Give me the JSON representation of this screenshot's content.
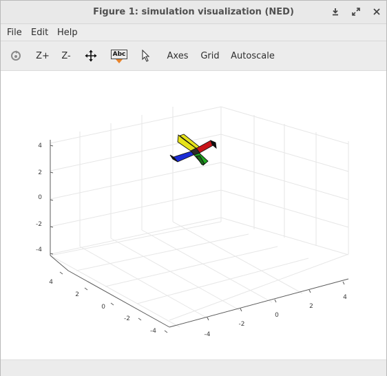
{
  "window": {
    "title": "Figure 1: simulation visualization (NED)"
  },
  "menu": {
    "items": [
      "File",
      "Edit",
      "Help"
    ]
  },
  "toolbar": {
    "zoom_in": "Z+",
    "zoom_out": "Z-",
    "text_tool": "Abc",
    "axes": "Axes",
    "grid": "Grid",
    "autoscale": "Autoscale"
  },
  "plot": {
    "vertical_ticks": [
      "4",
      "2",
      "0",
      "-2",
      "-4"
    ],
    "left_axis_ticks": [
      "4",
      "2",
      "0",
      "-2",
      "-4"
    ],
    "right_axis_ticks": [
      "-4",
      "-2",
      "0",
      "2",
      "4"
    ],
    "grid": true,
    "colors": {
      "wing_left": "#1b2cd6",
      "wing_right": "#c8141a",
      "nose": "#e6e21a",
      "tail": "#1faa1f"
    }
  }
}
